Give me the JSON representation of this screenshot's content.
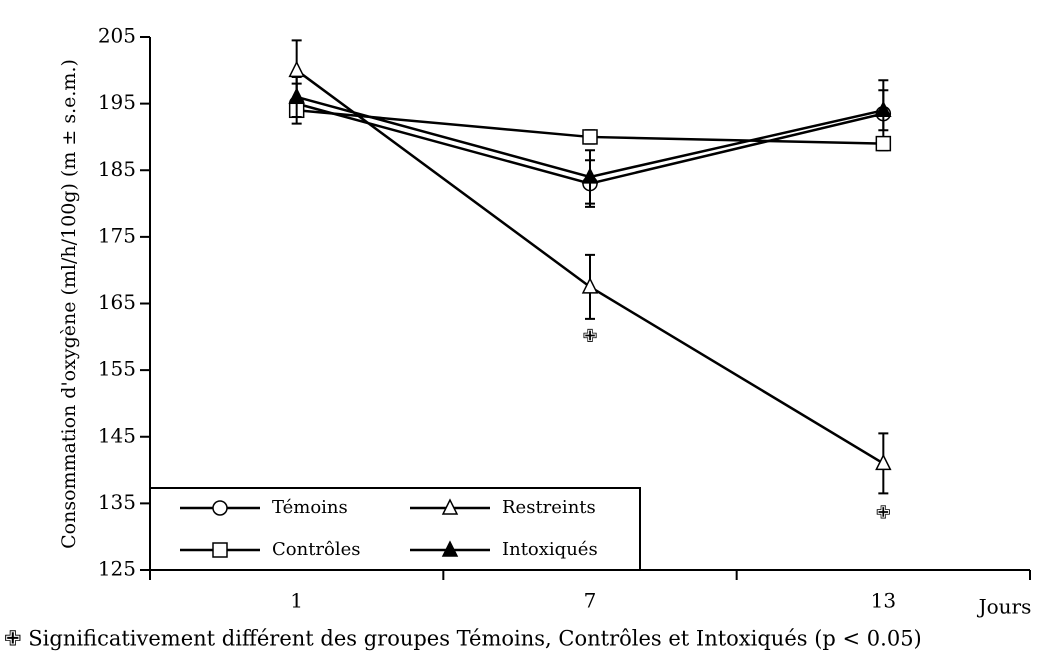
{
  "chart_data": {
    "type": "line",
    "y_label": "Consommation d'oxygène (ml/h/100g) (m ± s.e.m.)",
    "x_label": "Jours",
    "footnote": "✙ Significativement différent des groupes Témoins, Contrôles et Intoxiqués (p < 0.05)",
    "categories": [
      "1",
      "7",
      "13"
    ],
    "ylim": [
      125,
      205
    ],
    "yticks": [
      125,
      135,
      145,
      155,
      165,
      175,
      185,
      195,
      205
    ],
    "legend": "lower left",
    "series": [
      {
        "name": "Témoins",
        "color": "#000000",
        "marker": "circle",
        "values": [
          195,
          183,
          193.5
        ],
        "errors": [
          3,
          3.5,
          5
        ]
      },
      {
        "name": "Restreints",
        "color": "#000000",
        "marker": "triangle",
        "values": [
          200,
          167.5,
          141
        ],
        "errors": [
          4.5,
          4.8,
          4.5
        ]
      },
      {
        "name": "Contrôles",
        "color": "#000000",
        "marker": "square",
        "values": [
          194,
          190,
          189
        ],
        "errors": [
          1,
          1,
          1
        ]
      },
      {
        "name": "Intoxiqués",
        "color": "#000000",
        "marker": "triangle-filled",
        "values": [
          196,
          184,
          194
        ],
        "errors": [
          3,
          4,
          3
        ]
      }
    ],
    "significance": [
      {
        "x": "7",
        "y": 160,
        "label": "✙"
      },
      {
        "x": "13",
        "y": 133.5,
        "label": "✙"
      }
    ]
  }
}
